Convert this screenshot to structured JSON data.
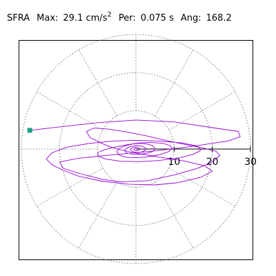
{
  "header": {
    "name": "SFRA",
    "max_label": "Max:",
    "max_value": "29.1",
    "max_unit": "cm/s",
    "max_exp": "2",
    "per_label": "Per:",
    "per_value": "0.075 s",
    "ang_label": "Ang:",
    "ang_value": "168.2"
  },
  "colors": {
    "trace": "#9400d3",
    "start_marker": "#20a080",
    "grid": "#555555",
    "axis": "#000000"
  },
  "chart_data": {
    "type": "polar-trajectory",
    "title": "SFRA  Max: 29.1 cm/s2  Per: 0.075 s  Ang: 168.2",
    "radial_ticks": [
      10,
      20,
      30
    ],
    "r_max": 30,
    "angular_grid_deg": [
      0,
      30,
      60,
      90,
      120,
      150,
      180,
      210,
      240,
      270,
      300,
      330
    ],
    "grid": true,
    "start_marker": [
      -27.8,
      4.9
    ],
    "series": [
      {
        "points": [
          [
            -27.8,
            4.9
          ],
          [
            -20,
            5.8
          ],
          [
            -10,
            6.9
          ],
          [
            0,
            7.6
          ],
          [
            10,
            7.1
          ],
          [
            20,
            5.6
          ],
          [
            26.8,
            4.6
          ],
          [
            27.3,
            3.2
          ],
          [
            24,
            2.1
          ],
          [
            14,
            0.6
          ],
          [
            4,
            -0.6
          ],
          [
            -6,
            -1.5
          ],
          [
            -15,
            -2.4
          ],
          [
            -20,
            -3.4
          ],
          [
            -19,
            -5.1
          ],
          [
            -14,
            -6.6
          ],
          [
            -9,
            -7.9
          ],
          [
            -4,
            -8.6
          ],
          [
            3,
            -8.3
          ],
          [
            10,
            -6.8
          ],
          [
            16,
            -5.1
          ],
          [
            20,
            -3.4
          ],
          [
            22,
            -1.7
          ],
          [
            21,
            -0.6
          ],
          [
            18,
            0.2
          ],
          [
            13,
            1.2
          ],
          [
            8,
            2.2
          ],
          [
            3,
            3.4
          ],
          [
            -2,
            4.4
          ],
          [
            -7,
            5.2
          ],
          [
            -11,
            5.5
          ],
          [
            -13,
            4.6
          ],
          [
            -12,
            3.0
          ],
          [
            -9,
            1.5
          ],
          [
            -6,
            0.3
          ],
          [
            -1,
            -0.9
          ],
          [
            6,
            -2.1
          ],
          [
            13,
            -3.2
          ],
          [
            18,
            -4.4
          ],
          [
            20,
            -5.8
          ],
          [
            17,
            -7.4
          ],
          [
            11,
            -8.8
          ],
          [
            5,
            -9.4
          ],
          [
            -2,
            -9.2
          ],
          [
            -9,
            -8.4
          ],
          [
            -15,
            -7.1
          ],
          [
            -19,
            -5.6
          ],
          [
            -22,
            -4.1
          ],
          [
            -23.5,
            -2.6
          ],
          [
            -22,
            -1.0
          ],
          [
            -18,
            0.5
          ],
          [
            -12,
            1.5
          ],
          [
            -6,
            2.1
          ],
          [
            0,
            2.3
          ],
          [
            6,
            2.1
          ],
          [
            12,
            1.6
          ],
          [
            16,
            0.8
          ],
          [
            17,
            -0.3
          ],
          [
            15,
            -1.4
          ],
          [
            11,
            -2.4
          ],
          [
            6,
            -3.0
          ],
          [
            1,
            -3.3
          ],
          [
            -4,
            -3.2
          ],
          [
            -8,
            -2.6
          ],
          [
            -10,
            -1.8
          ],
          [
            -10,
            -0.9
          ],
          [
            -8,
            -0.1
          ],
          [
            -5,
            0.6
          ],
          [
            -2,
            1.2
          ],
          [
            1,
            1.6
          ],
          [
            4,
            1.7
          ],
          [
            7,
            1.5
          ],
          [
            9,
            0.9
          ],
          [
            9.5,
            0.1
          ],
          [
            8.5,
            -0.7
          ],
          [
            6.5,
            -1.4
          ],
          [
            4,
            -1.9
          ],
          [
            1.5,
            -2.2
          ],
          [
            -1,
            -2.3
          ],
          [
            -3,
            -2.1
          ],
          [
            -4.5,
            -1.5
          ],
          [
            -5,
            -0.7
          ],
          [
            -4.5,
            0.1
          ],
          [
            -3,
            0.8
          ],
          [
            -1,
            1.3
          ],
          [
            1,
            1.5
          ],
          [
            3,
            1.3
          ],
          [
            4.5,
            0.8
          ],
          [
            5,
            0.1
          ],
          [
            4.5,
            -0.6
          ],
          [
            3,
            -1.1
          ],
          [
            1,
            -1.4
          ],
          [
            -1,
            -1.4
          ],
          [
            -2.5,
            -1.0
          ],
          [
            -3,
            -0.4
          ],
          [
            -2.5,
            0.2
          ],
          [
            -1.2,
            0.7
          ],
          [
            0.3,
            0.9
          ],
          [
            1.8,
            0.7
          ],
          [
            2.6,
            0.2
          ],
          [
            2.4,
            -0.4
          ],
          [
            1.4,
            -0.8
          ],
          [
            0.1,
            -0.9
          ],
          [
            -1,
            -0.6
          ],
          [
            -1.5,
            -0.1
          ],
          [
            -1,
            0.3
          ],
          [
            0,
            0.5
          ],
          [
            0.8,
            0.3
          ],
          [
            1,
            -0.1
          ],
          [
            0.5,
            -0.4
          ],
          [
            -0.2,
            -0.4
          ],
          [
            -0.5,
            -0.1
          ],
          [
            -0.2,
            0.2
          ],
          [
            0.2,
            0.1
          ],
          [
            0,
            0
          ]
        ]
      }
    ]
  }
}
